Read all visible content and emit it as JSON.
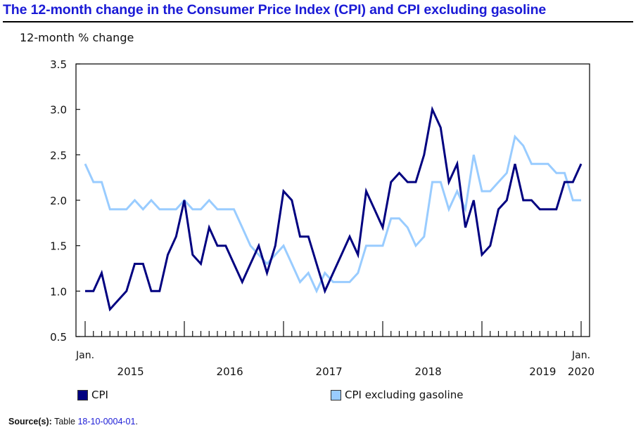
{
  "title": "The 12-month change in the Consumer Price Index (CPI) and CPI excluding gasoline",
  "source": {
    "label": "Source(s):",
    "prefix": "Table",
    "link_text": "18-10-0004-01",
    "suffix": "."
  },
  "chart_data": {
    "type": "line",
    "title": "The 12-month change in the Consumer Price Index (CPI) and CPI excluding gasoline",
    "ylabel": "12-month % change",
    "xlabel": "",
    "ylim": [
      0.5,
      3.5
    ],
    "yticks": [
      "0.5",
      "1.0",
      "1.5",
      "2.0",
      "2.5",
      "3.0",
      "3.5"
    ],
    "x_start": "Jan. 2015",
    "x_end": "Jan. 2020",
    "x_first_label": "Jan.",
    "x_last_label": "Jan.",
    "year_labels": [
      "2015",
      "2016",
      "2017",
      "2018",
      "2019",
      "2020"
    ],
    "grid": false,
    "legend_position": "bottom",
    "series": [
      {
        "name": "CPI",
        "color": "#000080",
        "values": [
          1.0,
          1.0,
          1.2,
          0.8,
          0.9,
          1.0,
          1.3,
          1.3,
          1.0,
          1.0,
          1.4,
          1.6,
          2.0,
          1.4,
          1.3,
          1.7,
          1.5,
          1.5,
          1.3,
          1.1,
          1.3,
          1.5,
          1.2,
          1.5,
          2.1,
          2.0,
          1.6,
          1.6,
          1.3,
          1.0,
          1.2,
          1.4,
          1.6,
          1.4,
          2.1,
          1.9,
          1.7,
          2.2,
          2.3,
          2.2,
          2.2,
          2.5,
          3.0,
          2.8,
          2.2,
          2.4,
          1.7,
          2.0,
          1.4,
          1.5,
          1.9,
          2.0,
          2.4,
          2.0,
          2.0,
          1.9,
          1.9,
          1.9,
          2.2,
          2.2,
          2.4
        ]
      },
      {
        "name": "CPI excluding gasoline",
        "color": "#99ccff",
        "values": [
          2.4,
          2.2,
          2.2,
          1.9,
          1.9,
          1.9,
          2.0,
          1.9,
          2.0,
          1.9,
          1.9,
          1.9,
          2.0,
          1.9,
          1.9,
          2.0,
          1.9,
          1.9,
          1.9,
          1.7,
          1.5,
          1.4,
          1.3,
          1.4,
          1.5,
          1.3,
          1.1,
          1.2,
          1.0,
          1.2,
          1.1,
          1.1,
          1.1,
          1.2,
          1.5,
          1.5,
          1.5,
          1.8,
          1.8,
          1.7,
          1.5,
          1.6,
          2.2,
          2.2,
          1.9,
          2.1,
          1.9,
          2.5,
          2.1,
          2.1,
          2.2,
          2.3,
          2.7,
          2.6,
          2.4,
          2.4,
          2.4,
          2.3,
          2.3,
          2.0,
          2.0
        ]
      }
    ]
  }
}
